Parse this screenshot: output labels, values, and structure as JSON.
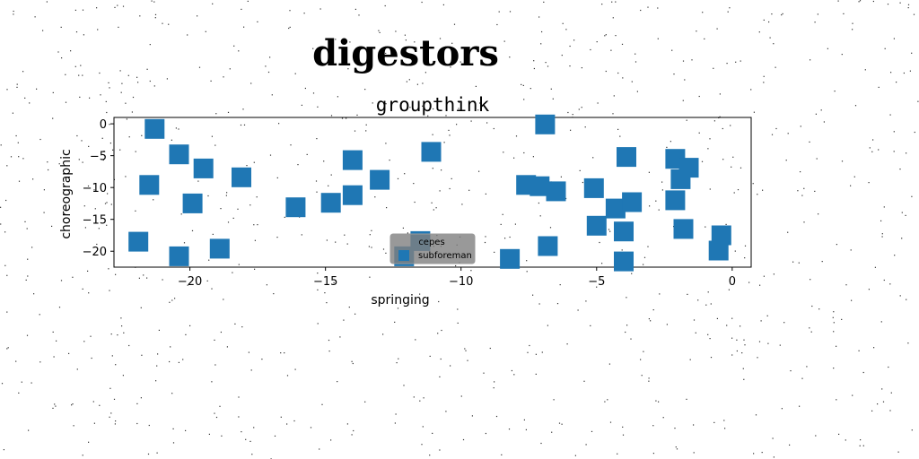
{
  "figure": {
    "suptitle": "digestors"
  },
  "chart_data": {
    "type": "scatter",
    "title": "groupthink",
    "xlabel": "springing",
    "ylabel": "choreographic",
    "xlim": [
      -22.8,
      0.7
    ],
    "ylim": [
      -22.5,
      1.0
    ],
    "xticks": [
      -20,
      -15,
      -10,
      -5,
      0
    ],
    "yticks": [
      0,
      -5,
      -10,
      -15,
      -20
    ],
    "grid": false,
    "marker": "square",
    "color": "#1f77b4",
    "legend": {
      "title": "cepes",
      "placement": "lower center",
      "entries": [
        "subforeman"
      ]
    },
    "series": [
      {
        "name": "subforeman",
        "points": [
          [
            -21.3,
            -0.8
          ],
          [
            -20.4,
            -4.8
          ],
          [
            -19.5,
            -7.0
          ],
          [
            -21.5,
            -9.6
          ],
          [
            -19.9,
            -12.5
          ],
          [
            -21.9,
            -18.5
          ],
          [
            -20.4,
            -20.8
          ],
          [
            -18.9,
            -19.6
          ],
          [
            -18.1,
            -8.4
          ],
          [
            -16.1,
            -13.1
          ],
          [
            -14.8,
            -12.4
          ],
          [
            -14.0,
            -11.2
          ],
          [
            -14.0,
            -5.7
          ],
          [
            -13.0,
            -8.8
          ],
          [
            -11.1,
            -4.4
          ],
          [
            -11.5,
            -18.4
          ],
          [
            -12.1,
            -20.8
          ],
          [
            -8.2,
            -21.2
          ],
          [
            -7.6,
            -9.6
          ],
          [
            -7.1,
            -9.8
          ],
          [
            -6.9,
            -0.1
          ],
          [
            -6.8,
            -19.2
          ],
          [
            -6.5,
            -10.6
          ],
          [
            -5.1,
            -10.1
          ],
          [
            -5.0,
            -16.0
          ],
          [
            -4.3,
            -13.3
          ],
          [
            -4.0,
            -16.9
          ],
          [
            -3.9,
            -5.2
          ],
          [
            -3.7,
            -12.3
          ],
          [
            -4.0,
            -21.6
          ],
          [
            -2.1,
            -12.0
          ],
          [
            -2.1,
            -5.5
          ],
          [
            -1.9,
            -8.7
          ],
          [
            -1.6,
            -6.9
          ],
          [
            -1.8,
            -16.5
          ],
          [
            -0.4,
            -17.5
          ],
          [
            -0.5,
            -19.9
          ]
        ]
      }
    ]
  }
}
